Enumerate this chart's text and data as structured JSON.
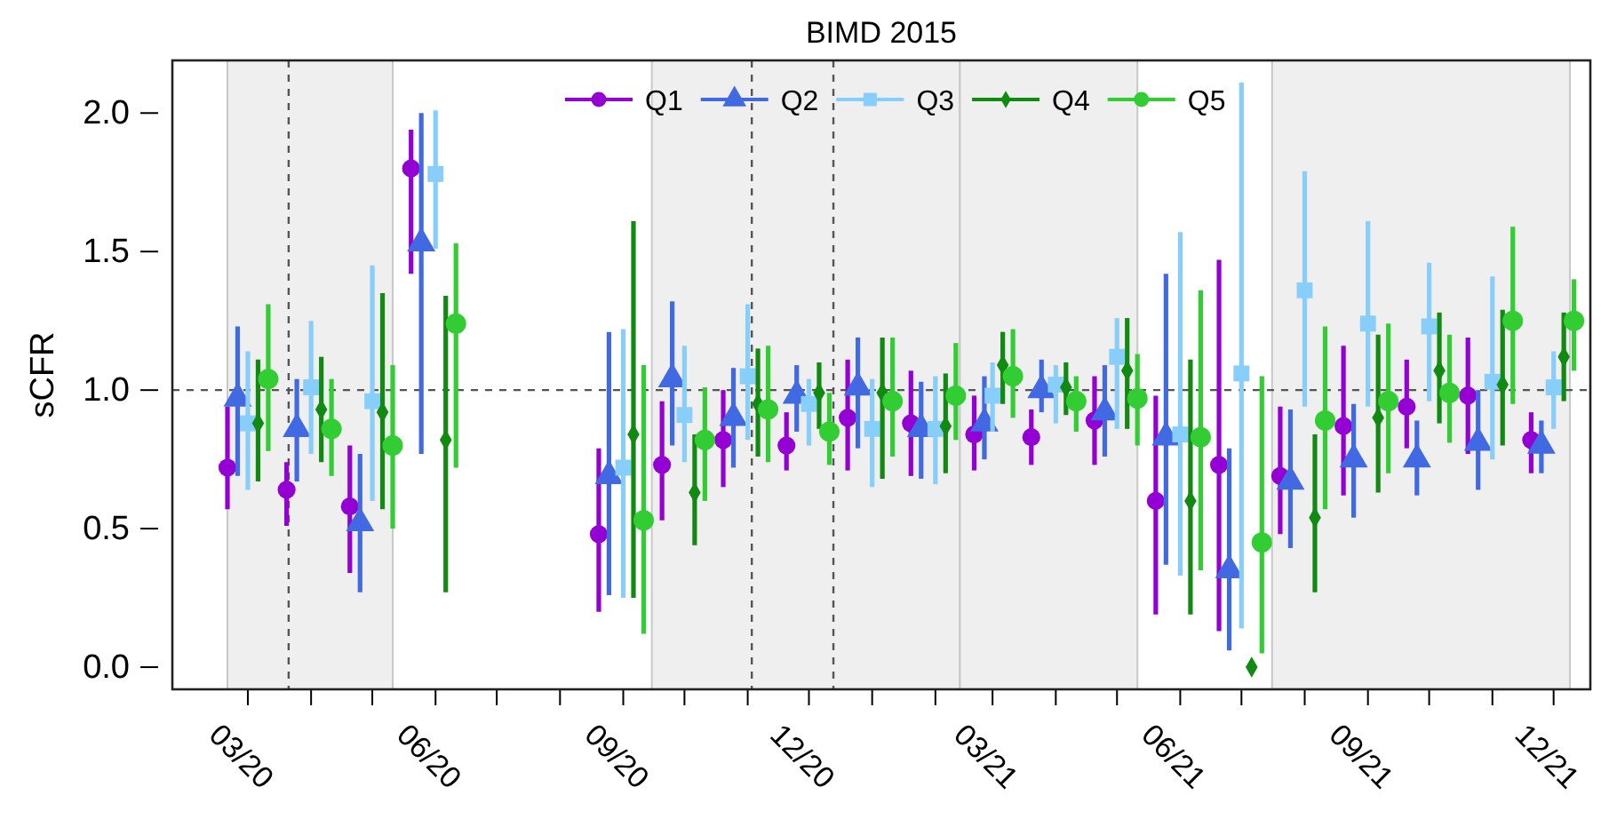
{
  "chart_data": {
    "type": "scatter",
    "title": "BIMD 2015",
    "ylabel": "sCFR",
    "xlim": [
      "2020-01-24",
      "2021-12-19"
    ],
    "ylim": [
      -0.08,
      2.19
    ],
    "yticks": [
      {
        "value": 0,
        "label": "0.0"
      },
      {
        "value": 0.5,
        "label": "0.5"
      },
      {
        "value": 1,
        "label": "1.0"
      },
      {
        "value": 1.5,
        "label": "1.5"
      },
      {
        "value": 2,
        "label": "2.0"
      }
    ],
    "xticks": [
      {
        "value": "2020-03-01",
        "label": "03/20"
      },
      {
        "value": "2020-04-01",
        "label": null
      },
      {
        "value": "2020-05-01",
        "label": null
      },
      {
        "value": "2020-06-01",
        "label": "06/20"
      },
      {
        "value": "2020-07-01",
        "label": null
      },
      {
        "value": "2020-08-01",
        "label": null
      },
      {
        "value": "2020-09-01",
        "label": "09/20"
      },
      {
        "value": "2020-10-01",
        "label": null
      },
      {
        "value": "2020-11-01",
        "label": null
      },
      {
        "value": "2020-12-01",
        "label": "12/20"
      },
      {
        "value": "2021-01-01",
        "label": null
      },
      {
        "value": "2021-02-01",
        "label": null
      },
      {
        "value": "2021-03-01",
        "label": "03/21"
      },
      {
        "value": "2021-04-01",
        "label": null
      },
      {
        "value": "2021-05-01",
        "label": null
      },
      {
        "value": "2021-06-01",
        "label": "06/21"
      },
      {
        "value": "2021-07-01",
        "label": null
      },
      {
        "value": "2021-08-01",
        "label": null
      },
      {
        "value": "2021-09-01",
        "label": "09/21"
      },
      {
        "value": "2021-10-01",
        "label": null
      },
      {
        "value": "2021-11-01",
        "label": null
      },
      {
        "value": "2021-12-01",
        "label": "12/21"
      }
    ],
    "grid": false,
    "legend": "top",
    "bands": [
      {
        "axis": "x",
        "from": "2020-02-20",
        "to": "2020-05-11",
        "color": "#efefef"
      },
      {
        "axis": "x",
        "from": "2020-09-15",
        "to": "2021-02-13",
        "color": "#efefef"
      },
      {
        "axis": "x",
        "from": "2021-02-13",
        "to": "2021-05-11",
        "color": "#efefef"
      },
      {
        "axis": "x",
        "from": "2021-07-16",
        "to": "2021-12-09",
        "color": "#efefef"
      }
    ],
    "ref_lines": [
      {
        "axis": "y",
        "value": 1,
        "color": "#555555",
        "line_style": "dashed"
      },
      {
        "axis": "x",
        "value": "2020-03-21",
        "color": "#555555",
        "line_style": "dashed"
      },
      {
        "axis": "x",
        "value": "2020-11-03",
        "color": "#555555",
        "line_style": "dashed"
      },
      {
        "axis": "x",
        "value": "2020-12-13",
        "color": "#555555",
        "line_style": "dashed"
      }
    ],
    "series": [
      {
        "name": "Q1",
        "color": "#9400d3",
        "marker": "circle",
        "x": [
          "2020-02-20",
          "2020-03-20",
          "2020-04-20",
          "2020-05-20",
          "2020-08-20",
          "2020-09-20",
          "2020-10-20",
          "2020-11-20",
          "2020-12-20",
          "2021-01-20",
          "2021-02-20",
          "2021-03-20",
          "2021-04-20",
          "2021-05-20",
          "2021-06-20",
          "2021-07-20",
          "2021-08-20",
          "2021-09-20",
          "2021-10-20",
          "2021-11-20"
        ],
        "values": [
          0.72,
          0.64,
          0.58,
          1.8,
          0.48,
          0.73,
          0.82,
          0.8,
          0.9,
          0.88,
          0.84,
          0.83,
          0.89,
          0.6,
          0.73,
          0.69,
          0.87,
          0.94,
          0.98,
          0.82
        ],
        "errors": [
          [
            0.57,
            0.94
          ],
          [
            0.51,
            0.74
          ],
          [
            0.34,
            0.8
          ],
          [
            1.42,
            1.94
          ],
          [
            0.2,
            0.79
          ],
          [
            0.53,
            0.96
          ],
          [
            0.65,
            1.0
          ],
          [
            0.71,
            0.92
          ],
          [
            0.71,
            1.11
          ],
          [
            0.69,
            1.07
          ],
          [
            0.71,
            0.98
          ],
          [
            0.73,
            0.93
          ],
          [
            0.73,
            1.05
          ],
          [
            0.19,
            0.98
          ],
          [
            0.13,
            1.47
          ],
          [
            0.48,
            0.94
          ],
          [
            0.62,
            1.16
          ],
          [
            0.79,
            1.11
          ],
          [
            0.77,
            1.19
          ],
          [
            0.7,
            0.92
          ]
        ]
      },
      {
        "name": "Q2",
        "color": "#4169e1",
        "marker": "triangle",
        "x": [
          "2020-02-25",
          "2020-03-25",
          "2020-04-25",
          "2020-05-25",
          "2020-08-25",
          "2020-09-25",
          "2020-10-25",
          "2020-11-25",
          "2020-12-25",
          "2021-01-25",
          "2021-02-25",
          "2021-03-25",
          "2021-04-25",
          "2021-05-25",
          "2021-06-25",
          "2021-07-25",
          "2021-08-25",
          "2021-09-25",
          "2021-10-25",
          "2021-11-25"
        ],
        "values": [
          0.97,
          0.86,
          0.52,
          1.53,
          0.69,
          1.04,
          0.9,
          0.98,
          1.01,
          0.86,
          0.88,
          1.0,
          0.92,
          0.83,
          0.35,
          0.67,
          0.75,
          0.75,
          0.81,
          0.8
        ],
        "errors": [
          [
            0.69,
            1.23
          ],
          [
            0.67,
            1.04
          ],
          [
            0.27,
            0.77
          ],
          [
            0.77,
            2.0
          ],
          [
            0.26,
            1.21
          ],
          [
            0.8,
            1.32
          ],
          [
            0.72,
            1.08
          ],
          [
            0.85,
            1.09
          ],
          [
            0.79,
            1.19
          ],
          [
            0.68,
            1.03
          ],
          [
            0.75,
            1.05
          ],
          [
            0.92,
            1.11
          ],
          [
            0.76,
            1.09
          ],
          [
            0.37,
            1.42
          ],
          [
            0.06,
            0.79
          ],
          [
            0.43,
            0.93
          ],
          [
            0.54,
            0.95
          ],
          [
            0.62,
            0.89
          ],
          [
            0.64,
            1.0
          ],
          [
            0.7,
            0.89
          ]
        ]
      },
      {
        "name": "Q3",
        "color": "#87cefa",
        "marker": "square",
        "x": [
          "2020-03-01",
          "2020-04-01",
          "2020-05-01",
          "2020-06-01",
          "2020-09-01",
          "2020-10-01",
          "2020-11-01",
          "2020-12-01",
          "2021-01-01",
          "2021-02-01",
          "2021-03-01",
          "2021-04-01",
          "2021-05-01",
          "2021-06-01",
          "2021-07-01",
          "2021-08-01",
          "2021-09-01",
          "2021-10-01",
          "2021-11-01",
          "2021-12-01"
        ],
        "values": [
          0.88,
          1.01,
          0.96,
          1.78,
          0.72,
          0.91,
          1.05,
          0.95,
          0.86,
          0.86,
          0.98,
          1.02,
          1.12,
          0.84,
          1.06,
          1.36,
          1.24,
          1.23,
          1.03,
          1.01
        ],
        "errors": [
          [
            0.64,
            1.14
          ],
          [
            0.77,
            1.25
          ],
          [
            0.6,
            1.45
          ],
          [
            1.51,
            2.01
          ],
          [
            0.25,
            1.22
          ],
          [
            0.74,
            1.16
          ],
          [
            0.82,
            1.31
          ],
          [
            0.8,
            1.04
          ],
          [
            0.65,
            1.04
          ],
          [
            0.66,
            1.05
          ],
          [
            0.85,
            1.1
          ],
          [
            0.88,
            1.09
          ],
          [
            0.86,
            1.26
          ],
          [
            0.33,
            1.57
          ],
          [
            0.14,
            2.11
          ],
          [
            0.94,
            1.79
          ],
          [
            0.94,
            1.61
          ],
          [
            0.96,
            1.46
          ],
          [
            0.75,
            1.41
          ],
          [
            0.86,
            1.14
          ]
        ]
      },
      {
        "name": "Q4",
        "color": "#118a11",
        "marker": "diamond",
        "x": [
          "2020-03-06",
          "2020-04-06",
          "2020-05-06",
          "2020-06-06",
          "2020-09-06",
          "2020-10-06",
          "2020-11-06",
          "2020-12-06",
          "2021-01-06",
          "2021-02-06",
          "2021-03-06",
          "2021-04-06",
          "2021-05-06",
          "2021-06-06",
          "2021-07-06",
          "2021-08-06",
          "2021-09-06",
          "2021-10-06",
          "2021-11-06",
          "2021-12-06"
        ],
        "values": [
          0.88,
          0.93,
          0.92,
          0.82,
          0.84,
          0.63,
          0.95,
          0.99,
          0.99,
          0.87,
          1.09,
          1.01,
          1.07,
          0.6,
          0.0,
          0.54,
          0.9,
          1.07,
          1.02,
          1.12
        ],
        "errors": [
          [
            0.67,
            1.11
          ],
          [
            0.74,
            1.12
          ],
          [
            0.57,
            1.35
          ],
          [
            0.27,
            1.34
          ],
          [
            0.25,
            1.61
          ],
          [
            0.44,
            0.84
          ],
          [
            0.76,
            1.15
          ],
          [
            0.86,
            1.1
          ],
          [
            0.68,
            1.19
          ],
          [
            0.7,
            1.06
          ],
          [
            0.95,
            1.21
          ],
          [
            0.91,
            1.1
          ],
          [
            0.86,
            1.26
          ],
          [
            0.19,
            1.11
          ],
          null,
          [
            0.27,
            0.84
          ],
          [
            0.63,
            1.2
          ],
          [
            0.88,
            1.28
          ],
          [
            0.8,
            1.29
          ],
          [
            0.96,
            1.28
          ]
        ]
      },
      {
        "name": "Q5",
        "color": "#32cd32",
        "marker": "circle",
        "x": [
          "2020-03-11",
          "2020-04-11",
          "2020-05-11",
          "2020-06-11",
          "2020-09-11",
          "2020-10-11",
          "2020-11-11",
          "2020-12-11",
          "2021-01-11",
          "2021-02-11",
          "2021-03-11",
          "2021-04-11",
          "2021-05-11",
          "2021-06-11",
          "2021-07-11",
          "2021-08-11",
          "2021-09-11",
          "2021-10-11",
          "2021-11-11",
          "2021-12-11"
        ],
        "values": [
          1.04,
          0.86,
          0.8,
          1.24,
          0.53,
          0.82,
          0.93,
          0.85,
          0.96,
          0.98,
          1.05,
          0.96,
          0.97,
          0.83,
          0.45,
          0.89,
          0.96,
          0.99,
          1.25,
          1.25
        ],
        "errors": [
          [
            0.78,
            1.31
          ],
          [
            0.69,
            1.04
          ],
          [
            0.5,
            1.09
          ],
          [
            0.72,
            1.53
          ],
          [
            0.12,
            1.09
          ],
          [
            0.6,
            1.01
          ],
          [
            0.74,
            1.16
          ],
          [
            0.73,
            0.99
          ],
          [
            0.76,
            1.19
          ],
          [
            0.82,
            1.17
          ],
          [
            0.9,
            1.22
          ],
          [
            0.85,
            1.05
          ],
          [
            0.8,
            1.13
          ],
          [
            0.35,
            1.36
          ],
          [
            0.05,
            1.05
          ],
          [
            0.57,
            1.23
          ],
          [
            0.7,
            1.24
          ],
          [
            0.81,
            1.2
          ],
          [
            0.95,
            1.59
          ],
          [
            1.07,
            1.4
          ]
        ]
      }
    ]
  }
}
